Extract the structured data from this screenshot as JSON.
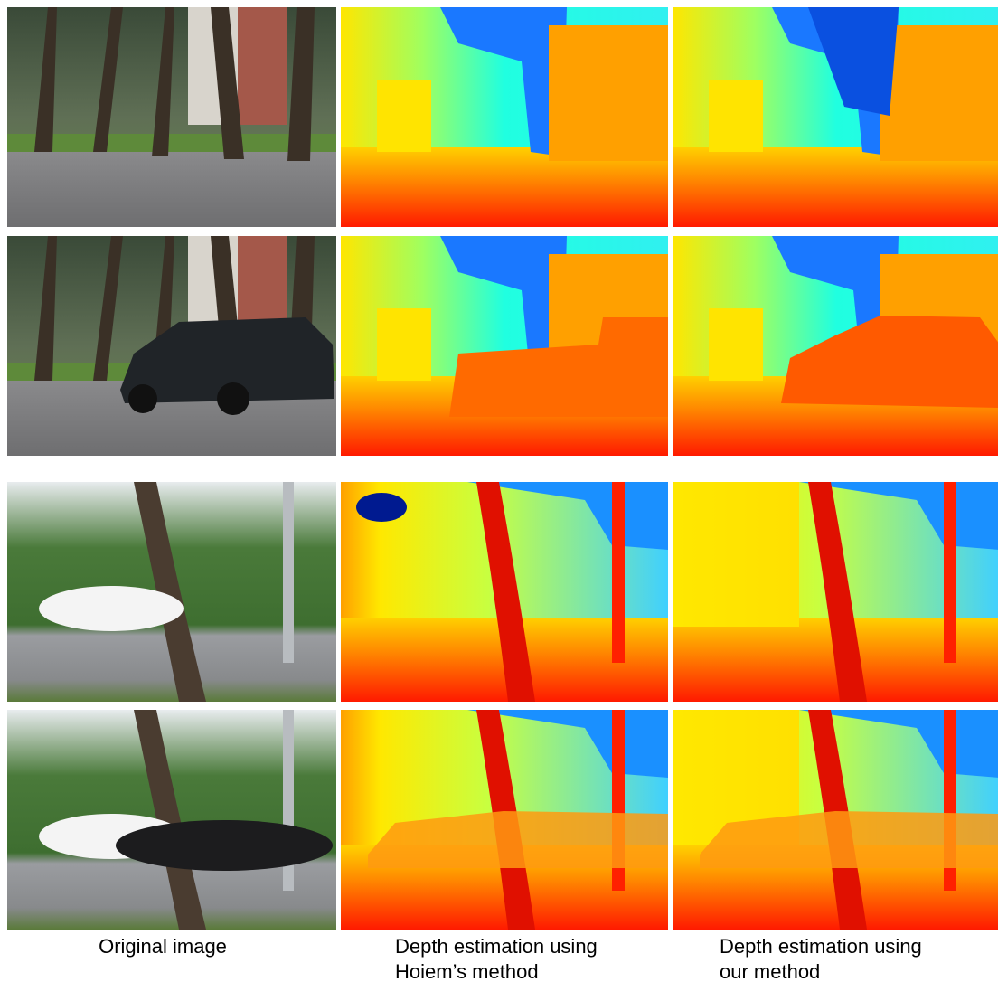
{
  "captions": [
    {
      "lines": [
        "Original image"
      ]
    },
    {
      "lines": [
        "Depth estimation using",
        "Hoiem’s method"
      ]
    },
    {
      "lines": [
        "Depth estimation using",
        "our method"
      ]
    }
  ]
}
